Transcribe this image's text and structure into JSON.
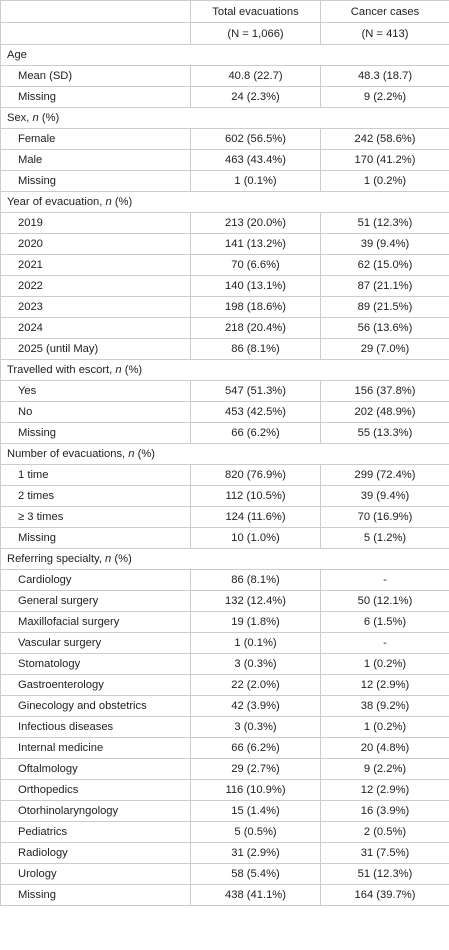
{
  "header": {
    "col_total": "Total evacuations",
    "col_cancer": "Cancer cases",
    "n_total": "(N = 1,066)",
    "n_cancer": "(N = 413)"
  },
  "sections": [
    {
      "title": "Age",
      "title_suffix": "",
      "rows": [
        {
          "label": "Mean (SD)",
          "total": "40.8 (22.7)",
          "cancer": "48.3 (18.7)"
        },
        {
          "label": "Missing",
          "total": "24 (2.3%)",
          "cancer": "9 (2.2%)"
        }
      ]
    },
    {
      "title": "Sex, ",
      "title_suffix": " (%)",
      "rows": [
        {
          "label": "Female",
          "total": "602 (56.5%)",
          "cancer": "242 (58.6%)"
        },
        {
          "label": "Male",
          "total": "463 (43.4%)",
          "cancer": "170 (41.2%)"
        },
        {
          "label": "Missing",
          "total": "1 (0.1%)",
          "cancer": "1 (0.2%)"
        }
      ]
    },
    {
      "title": "Year of evacuation, ",
      "title_suffix": " (%)",
      "rows": [
        {
          "label": "2019",
          "total": "213 (20.0%)",
          "cancer": "51 (12.3%)"
        },
        {
          "label": "2020",
          "total": "141 (13.2%)",
          "cancer": "39 (9.4%)"
        },
        {
          "label": "2021",
          "total": "70 (6.6%)",
          "cancer": "62 (15.0%)"
        },
        {
          "label": "2022",
          "total": "140 (13.1%)",
          "cancer": "87 (21.1%)"
        },
        {
          "label": "2023",
          "total": "198 (18.6%)",
          "cancer": "89 (21.5%)"
        },
        {
          "label": "2024",
          "total": "218 (20.4%)",
          "cancer": "56 (13.6%)"
        },
        {
          "label": "2025 (until May)",
          "total": "86 (8.1%)",
          "cancer": "29 (7.0%)"
        }
      ]
    },
    {
      "title": "Travelled with escort, ",
      "title_suffix": " (%)",
      "rows": [
        {
          "label": "Yes",
          "total": "547 (51.3%)",
          "cancer": "156 (37.8%)"
        },
        {
          "label": "No",
          "total": "453 (42.5%)",
          "cancer": "202 (48.9%)"
        },
        {
          "label": "Missing",
          "total": "66 (6.2%)",
          "cancer": "55 (13.3%)"
        }
      ]
    },
    {
      "title": "Number of evacuations, ",
      "title_suffix": " (%)",
      "rows": [
        {
          "label": "1 time",
          "total": "820 (76.9%)",
          "cancer": "299 (72.4%)"
        },
        {
          "label": "2 times",
          "total": "112 (10.5%)",
          "cancer": "39 (9.4%)"
        },
        {
          "label": "≥ 3 times",
          "total": "124 (11.6%)",
          "cancer": "70 (16.9%)"
        },
        {
          "label": "Missing",
          "total": "10 (1.0%)",
          "cancer": "5 (1.2%)"
        }
      ]
    },
    {
      "title": "Referring specialty, ",
      "title_suffix": " (%)",
      "rows": [
        {
          "label": "Cardiology",
          "total": "86 (8.1%)",
          "cancer": "-"
        },
        {
          "label": "General surgery",
          "total": "132 (12.4%)",
          "cancer": "50 (12.1%)"
        },
        {
          "label": "Maxillofacial surgery",
          "total": "19 (1.8%)",
          "cancer": "6 (1.5%)"
        },
        {
          "label": "Vascular surgery",
          "total": "1 (0.1%)",
          "cancer": "-"
        },
        {
          "label": "Stomatology",
          "total": "3 (0.3%)",
          "cancer": "1 (0.2%)"
        },
        {
          "label": "Gastroenterology",
          "total": "22 (2.0%)",
          "cancer": "12 (2.9%)"
        },
        {
          "label": "Ginecology and obstetrics",
          "total": "42 (3.9%)",
          "cancer": "38 (9.2%)"
        },
        {
          "label": "Infectious diseases",
          "total": "3 (0.3%)",
          "cancer": "1 (0.2%)"
        },
        {
          "label": "Internal medicine",
          "total": "66 (6.2%)",
          "cancer": "20 (4.8%)"
        },
        {
          "label": "Oftalmology",
          "total": "29 (2.7%)",
          "cancer": "9 (2.2%)"
        },
        {
          "label": "Orthopedics",
          "total": "116 (10.9%)",
          "cancer": "12 (2.9%)"
        },
        {
          "label": "Otorhinolaryngology",
          "total": "15 (1.4%)",
          "cancer": "16 (3.9%)"
        },
        {
          "label": "Pediatrics",
          "total": "5 (0.5%)",
          "cancer": "2 (0.5%)"
        },
        {
          "label": "Radiology",
          "total": "31 (2.9%)",
          "cancer": "31 (7.5%)"
        },
        {
          "label": "Urology",
          "total": "58 (5.4%)",
          "cancer": "51 (12.3%)"
        },
        {
          "label": "Missing",
          "total": "438 (41.1%)",
          "cancer": "164 (39.7%)"
        }
      ]
    }
  ],
  "n_italic": "n"
}
